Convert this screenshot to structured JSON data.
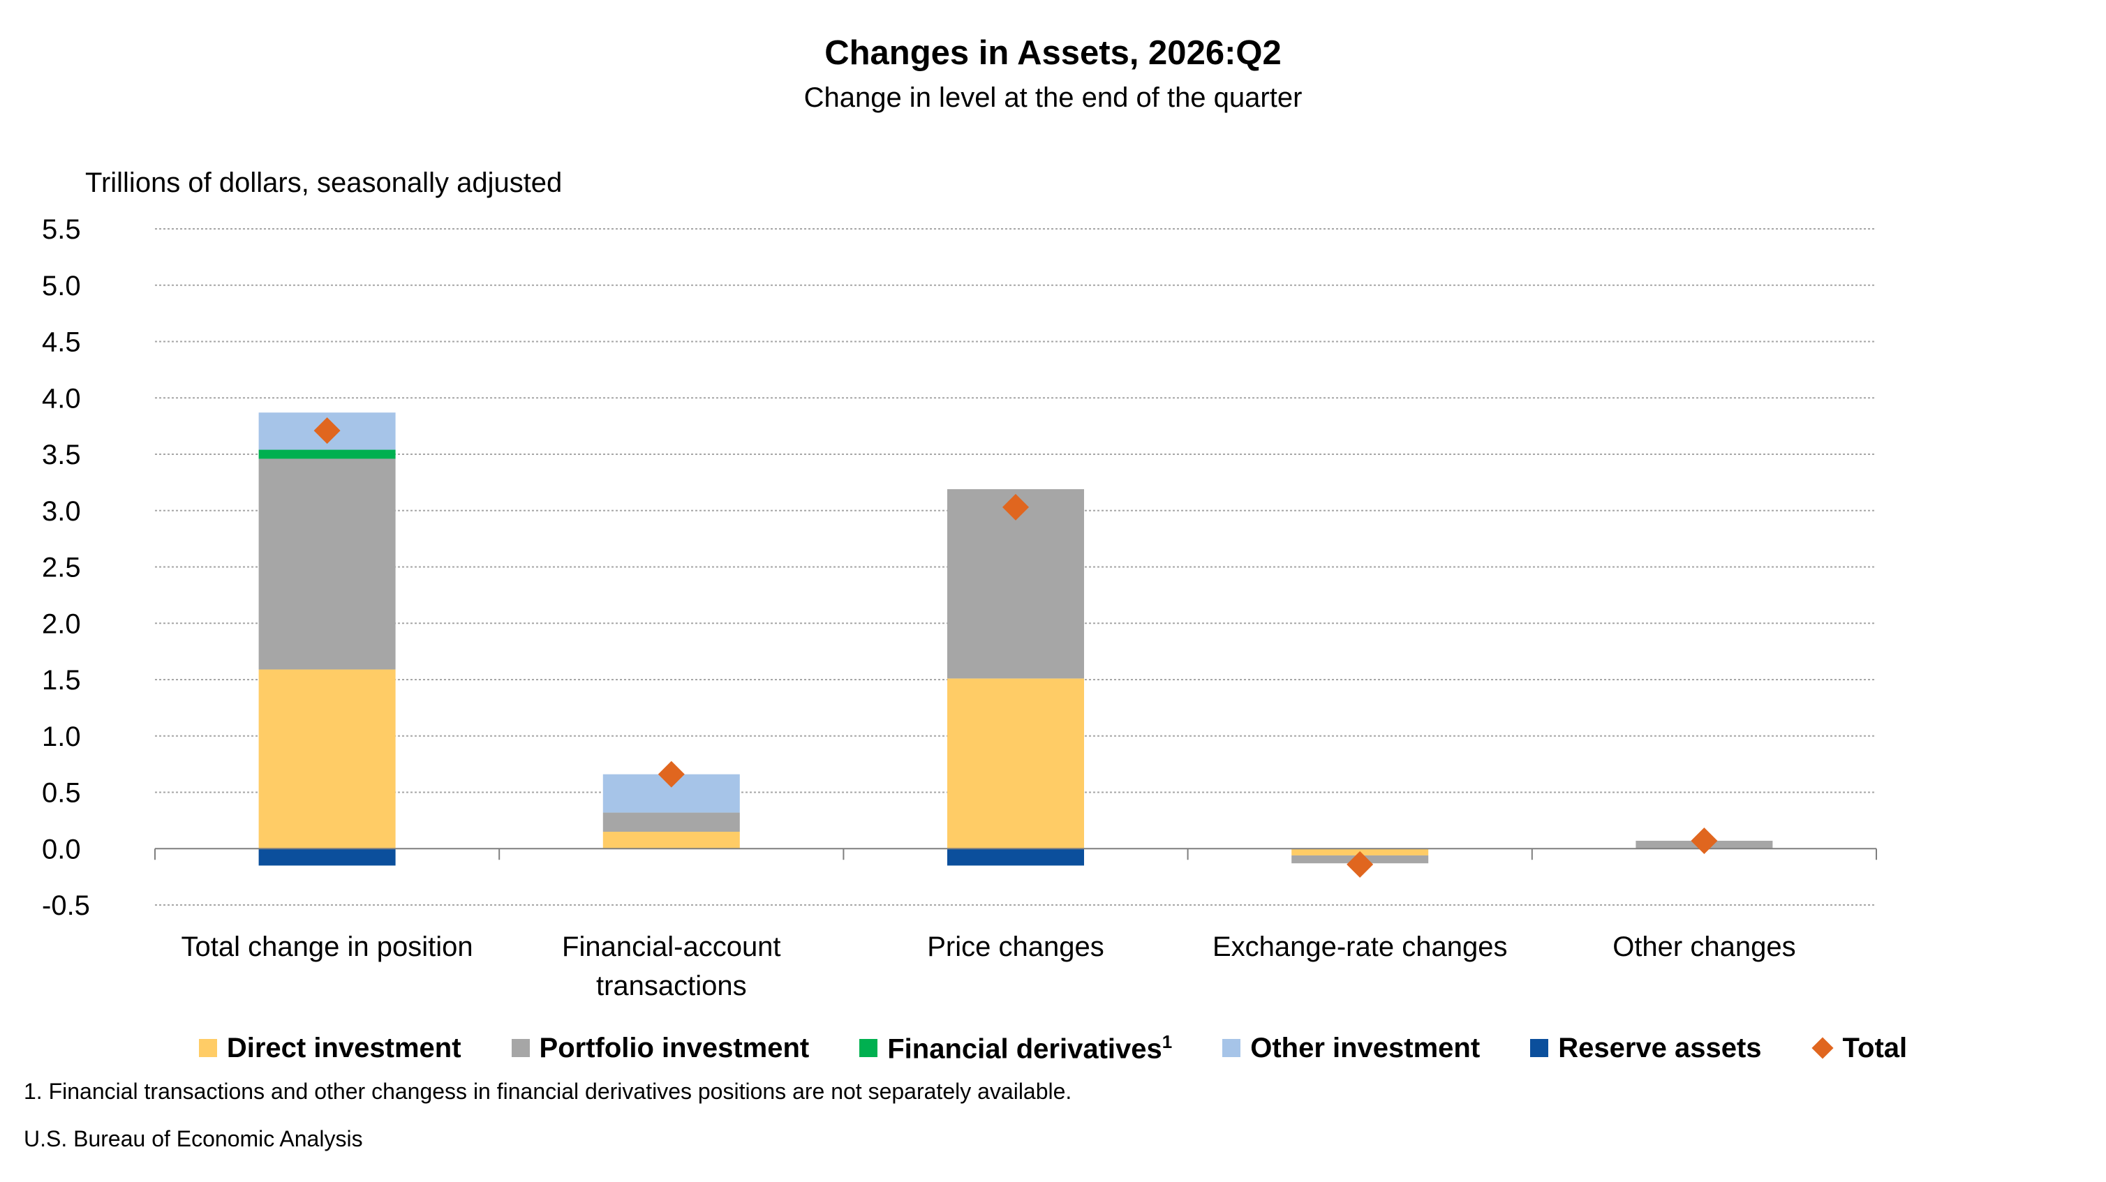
{
  "title": "Changes in Assets, 2026:Q2",
  "subtitle": "Change in level at the end of the quarter",
  "unit_label": "Trillions of dollars, seasonally adjusted",
  "footnote": "1. Financial transactions and other changess in financial derivatives positions are not separately available.",
  "source": "U.S. Bureau of Economic Analysis",
  "legend": [
    {
      "label": "Direct investment",
      "sup": "",
      "color": "#FFCC66",
      "shape": "square"
    },
    {
      "label": "Portfolio investment",
      "sup": "",
      "color": "#A6A6A6",
      "shape": "square"
    },
    {
      "label": "Financial derivatives",
      "sup": "1",
      "color": "#00B050",
      "shape": "square"
    },
    {
      "label": "Other investment",
      "sup": "",
      "color": "#A6C4E8",
      "shape": "square"
    },
    {
      "label": "Reserve assets",
      "sup": "",
      "color": "#0B4F9C",
      "shape": "square"
    },
    {
      "label": "Total",
      "sup": "",
      "color": "#E0661F",
      "shape": "diamond"
    }
  ],
  "chart_data": {
    "type": "bar",
    "stacked": true,
    "categories": [
      "Total change in position",
      "Financial-account transactions",
      "Price changes",
      "Exchange-rate changes",
      "Other changes"
    ],
    "y_ticks": [
      "5.5",
      "5.0",
      "4.5",
      "4.0",
      "3.5",
      "3.0",
      "2.5",
      "2.0",
      "1.5",
      "1.0",
      "0.5",
      "0.0",
      "-0.5"
    ],
    "ylim": [
      -0.5,
      5.5
    ],
    "grid": true,
    "legend_position": "bottom",
    "series": [
      {
        "name": "Direct investment",
        "color": "#FFCC66",
        "values": [
          1.59,
          0.15,
          1.51,
          -0.06,
          0.0
        ]
      },
      {
        "name": "Portfolio investment",
        "color": "#A6A6A6",
        "values": [
          1.87,
          0.17,
          1.68,
          -0.07,
          0.07
        ]
      },
      {
        "name": "Financial derivatives",
        "color": "#00B050",
        "values": [
          0.08,
          0.0,
          0.0,
          0.0,
          0.0
        ]
      },
      {
        "name": "Other investment",
        "color": "#A6C4E8",
        "values": [
          0.33,
          0.34,
          0.0,
          0.0,
          0.0
        ]
      },
      {
        "name": "Reserve assets",
        "color": "#0B4F9C",
        "values": [
          -0.15,
          0.0,
          -0.15,
          0.0,
          0.0
        ]
      }
    ],
    "total": {
      "name": "Total",
      "color": "#E0661F",
      "values": [
        3.71,
        0.66,
        3.03,
        -0.14,
        0.07
      ]
    }
  }
}
